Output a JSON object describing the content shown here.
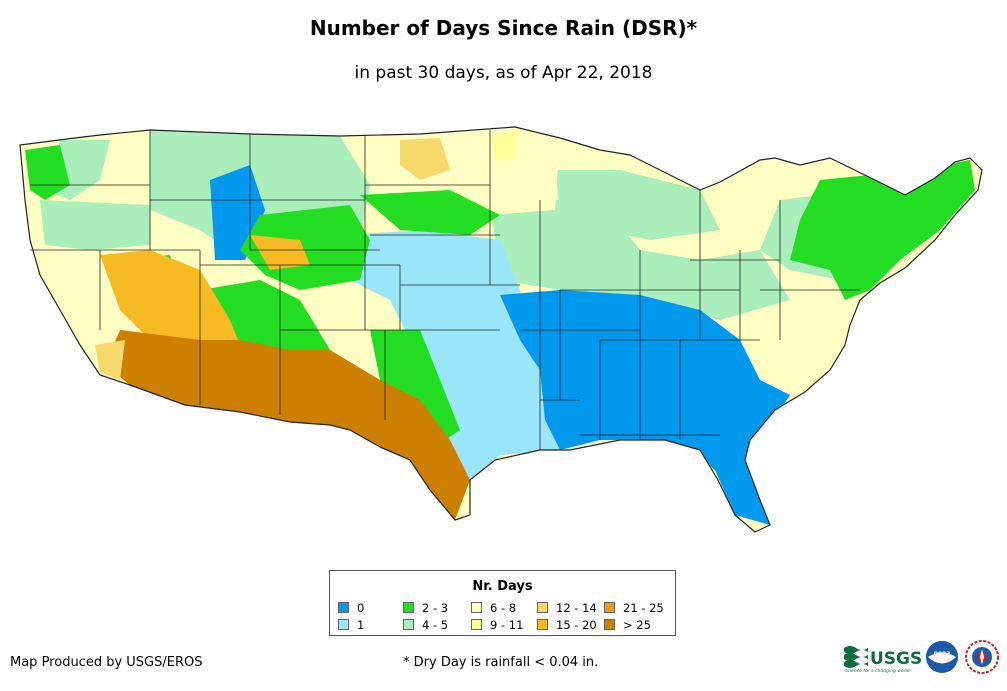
{
  "title": "Number of Days Since Rain (DSR)*",
  "subtitle": "in past 30 days, as of Apr 22, 2018",
  "legend": {
    "title": "Nr. Days",
    "items": [
      {
        "label": "0",
        "color": "#0099ee"
      },
      {
        "label": "1",
        "color": "#99e6f8"
      },
      {
        "label": "2 - 3",
        "color": "#22dd22"
      },
      {
        "label": "4 - 5",
        "color": "#aaeebb"
      },
      {
        "label": "6 - 8",
        "color": "#ffffc4"
      },
      {
        "label": "9 - 11",
        "color": "#ffff9a"
      },
      {
        "label": "12 - 14",
        "color": "#f6d96a"
      },
      {
        "label": "15 - 20",
        "color": "#f6bb22"
      },
      {
        "label": "21 - 25",
        "color": "#ee9911"
      },
      {
        "label": "> 25",
        "color": "#cc7f00"
      }
    ]
  },
  "credit": "Map Produced by USGS/EROS",
  "footnote": "* Dry Day is rainfall < 0.04 in.",
  "logos": {
    "usgs": "USGS",
    "usgs_tagline": "science for a changing world",
    "noaa": "noaa"
  }
}
